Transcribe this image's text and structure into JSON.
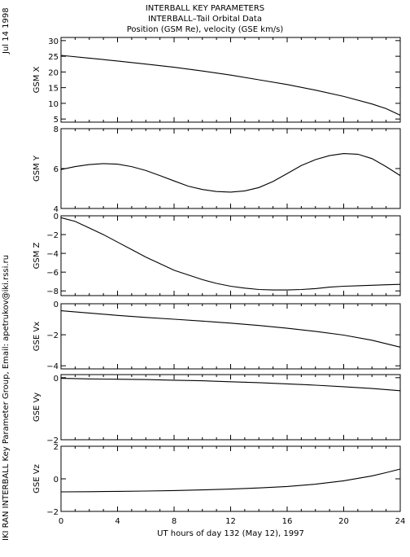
{
  "header": {
    "date_stamp": "Jul 14 1998",
    "titles": [
      "INTERBALL KEY PARAMETERS",
      "INTERBALL–Tail Orbital Data",
      "Position (GSM Re), velocity (GSE km/s)"
    ]
  },
  "side_credit": "IKI RAN INTERBALL Key Parameter Group, Email: apetrukov@iki.rssi.ru",
  "chart_data": {
    "type": "line",
    "x_axis": {
      "label": "UT hours of day 132 (May 12), 1997",
      "range": [
        0,
        24
      ],
      "ticks": [
        "0",
        "4",
        "8",
        "12",
        "16",
        "20",
        "24"
      ],
      "minor_step": 1
    },
    "panels": [
      {
        "ylabel": "GSM X",
        "ylim": [
          4,
          31
        ],
        "yticks": [
          "5",
          "10",
          "15",
          "20",
          "25",
          "30"
        ],
        "ytick_values": [
          5,
          10,
          15,
          20,
          25,
          30
        ],
        "x": [
          0,
          2,
          4,
          6,
          8,
          10,
          12,
          14,
          16,
          18,
          20,
          22,
          23,
          24
        ],
        "y": [
          25.3,
          24.4,
          23.5,
          22.5,
          21.5,
          20.3,
          19.0,
          17.5,
          16.0,
          14.2,
          12.2,
          9.8,
          8.3,
          6.2
        ]
      },
      {
        "ylabel": "GSM Y",
        "ylim": [
          4,
          8
        ],
        "yticks": [
          "4",
          "6",
          "8"
        ],
        "ytick_values": [
          4,
          6,
          8
        ],
        "x": [
          0,
          1,
          2,
          3,
          4,
          5,
          6,
          7,
          8,
          9,
          10,
          11,
          12,
          13,
          14,
          15,
          16,
          17,
          18,
          19,
          20,
          21,
          22,
          23,
          24
        ],
        "y": [
          5.95,
          6.1,
          6.2,
          6.25,
          6.22,
          6.1,
          5.9,
          5.65,
          5.38,
          5.12,
          4.95,
          4.85,
          4.82,
          4.88,
          5.05,
          5.35,
          5.75,
          6.15,
          6.45,
          6.65,
          6.75,
          6.72,
          6.5,
          6.1,
          5.65
        ]
      },
      {
        "ylabel": "GSM Z",
        "ylim": [
          -8.5,
          0
        ],
        "yticks": [
          "0",
          "−2",
          "−4",
          "−6",
          "−8"
        ],
        "ytick_values": [
          0,
          -2,
          -4,
          -6,
          -8
        ],
        "x": [
          0,
          1,
          2,
          3,
          4,
          5,
          6,
          7,
          8,
          9,
          10,
          11,
          12,
          13,
          14,
          15,
          16,
          17,
          18,
          19,
          20,
          21,
          22,
          23,
          24
        ],
        "y": [
          -0.2,
          -0.6,
          -1.3,
          -2.0,
          -2.8,
          -3.6,
          -4.4,
          -5.1,
          -5.8,
          -6.3,
          -6.8,
          -7.2,
          -7.5,
          -7.7,
          -7.85,
          -7.9,
          -7.9,
          -7.85,
          -7.75,
          -7.6,
          -7.5,
          -7.45,
          -7.4,
          -7.35,
          -7.3
        ]
      },
      {
        "ylabel": "GSE Vx",
        "ylim": [
          -4.2,
          0
        ],
        "yticks": [
          "0",
          "−2",
          "−4"
        ],
        "ytick_values": [
          0,
          -2,
          -4
        ],
        "x": [
          0,
          2,
          4,
          6,
          8,
          10,
          12,
          14,
          16,
          18,
          20,
          22,
          24
        ],
        "y": [
          -0.45,
          -0.6,
          -0.75,
          -0.88,
          -1.0,
          -1.12,
          -1.25,
          -1.4,
          -1.58,
          -1.78,
          -2.02,
          -2.35,
          -2.8
        ]
      },
      {
        "ylabel": "GSE Vy",
        "ylim": [
          -2,
          0.1
        ],
        "yticks": [
          "0",
          "−2"
        ],
        "ytick_values": [
          0,
          -2
        ],
        "x": [
          0,
          2,
          4,
          6,
          8,
          10,
          12,
          14,
          16,
          18,
          20,
          22,
          24
        ],
        "y": [
          -0.02,
          -0.04,
          -0.05,
          -0.06,
          -0.08,
          -0.1,
          -0.13,
          -0.16,
          -0.2,
          -0.24,
          -0.29,
          -0.35,
          -0.42
        ]
      },
      {
        "ylabel": "GSE Vz",
        "ylim": [
          -2,
          2
        ],
        "yticks": [
          "2",
          "0",
          "−2"
        ],
        "ytick_values": [
          2,
          0,
          -2
        ],
        "x": [
          0,
          2,
          4,
          6,
          8,
          10,
          12,
          14,
          16,
          18,
          20,
          22,
          23,
          24
        ],
        "y": [
          -0.8,
          -0.79,
          -0.77,
          -0.75,
          -0.72,
          -0.68,
          -0.63,
          -0.56,
          -0.47,
          -0.33,
          -0.12,
          0.18,
          0.38,
          0.6
        ]
      }
    ]
  }
}
